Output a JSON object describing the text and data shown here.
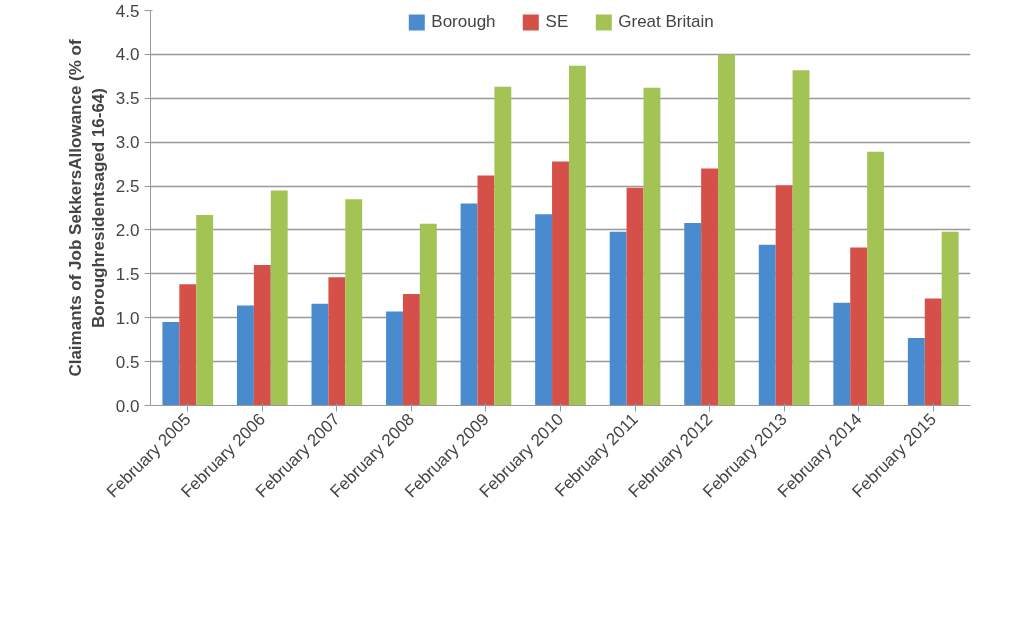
{
  "chart_data": {
    "type": "bar",
    "ylabel": "Claimants of Job SekkersAllowance (% of\nBoroughresidentsaged 16-64)",
    "categories": [
      "February 2005",
      "February 2006",
      "February 2007",
      "February 2008",
      "February 2009",
      "February 2010",
      "February 2011",
      "February 2012",
      "February 2013",
      "February 2014",
      "February 2015"
    ],
    "series": [
      {
        "name": "Borough",
        "color": "#4a8bd0",
        "values": [
          0.95,
          1.14,
          1.16,
          1.07,
          2.3,
          2.18,
          1.98,
          2.08,
          1.83,
          1.17,
          0.77
        ]
      },
      {
        "name": "SE",
        "color": "#d6504a",
        "values": [
          1.38,
          1.6,
          1.46,
          1.27,
          2.62,
          2.78,
          2.48,
          2.7,
          2.51,
          1.8,
          1.22
        ]
      },
      {
        "name": "Great Britain",
        "color": "#a3c455",
        "values": [
          2.17,
          2.45,
          2.35,
          2.07,
          3.63,
          3.87,
          3.62,
          4.0,
          3.82,
          2.89,
          1.98
        ]
      }
    ],
    "ylim": [
      0,
      4.5
    ],
    "yticks": [
      {
        "value": 0,
        "label": "0.0"
      },
      {
        "value": 0.5,
        "label": "0.5"
      },
      {
        "value": 1,
        "label": "1.0"
      },
      {
        "value": 1.5,
        "label": "1.5"
      },
      {
        "value": 2,
        "label": "2.0"
      },
      {
        "value": 2.5,
        "label": "2.5"
      },
      {
        "value": 3,
        "label": "3.0"
      },
      {
        "value": 3.5,
        "label": "3.5"
      },
      {
        "value": 4,
        "label": "4.0"
      },
      {
        "value": 4.5,
        "label": "4.5"
      }
    ],
    "grid": "y",
    "legend": "top"
  }
}
